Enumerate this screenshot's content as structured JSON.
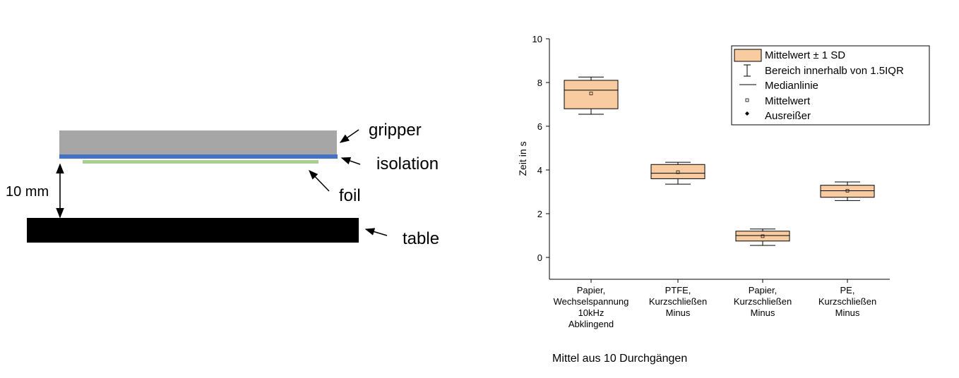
{
  "diagram": {
    "labels": {
      "gripper": "gripper",
      "isolation": "isolation",
      "foil": "foil",
      "table": "table",
      "distance": "10 mm"
    },
    "colors": {
      "gripper": "#a6a6a6",
      "isolation": "#4472c4",
      "foil": "#a9d18e",
      "table": "#000000"
    }
  },
  "note": "Mittel aus 10 Durchgängen",
  "chart_data": {
    "type": "box",
    "ylabel": "Zeit in s",
    "xlabel": "",
    "ylim": [
      -1,
      10
    ],
    "yticks": [
      0,
      2,
      4,
      6,
      8,
      10
    ],
    "categories": [
      [
        "Papier,",
        "Wechselspannung",
        "10kHz",
        "Abklingend"
      ],
      [
        "PTFE,",
        "Kurzschließen",
        "Minus"
      ],
      [
        "Papier,",
        "Kurzschließen",
        "Minus"
      ],
      [
        "PE,",
        "Kurzschließen",
        "Minus"
      ]
    ],
    "boxes": [
      {
        "whisker_low": 6.55,
        "q1": 6.8,
        "median": 7.65,
        "mean": 7.5,
        "q3": 8.1,
        "whisker_high": 8.25
      },
      {
        "whisker_low": 3.35,
        "q1": 3.6,
        "median": 3.85,
        "mean": 3.9,
        "q3": 4.25,
        "whisker_high": 4.35
      },
      {
        "whisker_low": 0.55,
        "q1": 0.75,
        "median": 1.0,
        "mean": 0.97,
        "q3": 1.2,
        "whisker_high": 1.3
      },
      {
        "whisker_low": 2.6,
        "q1": 2.75,
        "median": 3.05,
        "mean": 3.05,
        "q3": 3.3,
        "whisker_high": 3.45
      }
    ],
    "legend": {
      "placement": "top-right",
      "items": [
        "Mittelwert ± 1 SD",
        "Bereich innerhalb von 1.5IQR",
        "Medianlinie",
        "Mittelwert",
        "Ausreißer"
      ]
    },
    "colors": {
      "box_fill": "#f8cba0",
      "box_stroke": "#000000"
    }
  }
}
